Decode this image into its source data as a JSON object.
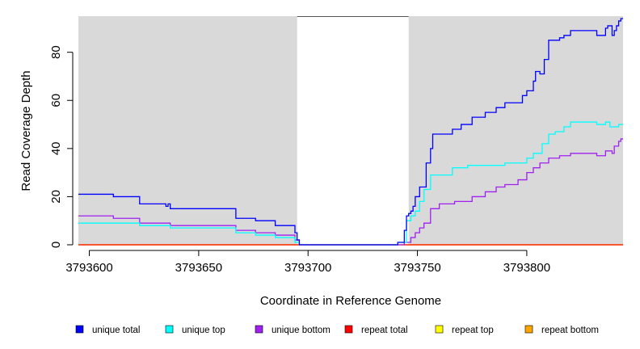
{
  "chart_data": {
    "type": "line",
    "xlabel": "Coordinate in Reference Genome",
    "ylabel": "Read Coverage Depth",
    "xlim": [
      3793595,
      3793844
    ],
    "ylim": [
      0,
      95
    ],
    "x_ticks": [
      3793600,
      3793650,
      3793700,
      3793750,
      3793800
    ],
    "x_tick_labels": [
      "3793600",
      "3793650",
      "3793700",
      "3793750",
      "3793800"
    ],
    "y_ticks": [
      0,
      20,
      40,
      60,
      80
    ],
    "y_tick_labels": [
      "0",
      "20",
      "40",
      "60",
      "80"
    ],
    "grid": false,
    "background_color": "#d9d9d9",
    "unshaded_region": [
      3793695,
      3793746
    ],
    "legend_placement": "bottom",
    "series": [
      {
        "name": "unique total",
        "color": "#0000ff",
        "points": [
          [
            3793595,
            21
          ],
          [
            3793611,
            20
          ],
          [
            3793623,
            17
          ],
          [
            3793635,
            16
          ],
          [
            3793636,
            17
          ],
          [
            3793637,
            15
          ],
          [
            3793667,
            11
          ],
          [
            3793676,
            10
          ],
          [
            3793685,
            8
          ],
          [
            3793694,
            5
          ],
          [
            3793695,
            2
          ],
          [
            3793696,
            0
          ],
          [
            3793741,
            1
          ],
          [
            3793744,
            6
          ],
          [
            3793745,
            12
          ],
          [
            3793746,
            13
          ],
          [
            3793747,
            14
          ],
          [
            3793748,
            16
          ],
          [
            3793749,
            20
          ],
          [
            3793751,
            24
          ],
          [
            3793754,
            34
          ],
          [
            3793756,
            40
          ],
          [
            3793757,
            46
          ],
          [
            3793766,
            48
          ],
          [
            3793770,
            50
          ],
          [
            3793775,
            53
          ],
          [
            3793781,
            55
          ],
          [
            3793786,
            57
          ],
          [
            3793790,
            59
          ],
          [
            3793798,
            62
          ],
          [
            3793800,
            64
          ],
          [
            3793803,
            68
          ],
          [
            3793804,
            72
          ],
          [
            3793806,
            71
          ],
          [
            3793808,
            77
          ],
          [
            3793810,
            85
          ],
          [
            3793815,
            86
          ],
          [
            3793817,
            87
          ],
          [
            3793820,
            89
          ],
          [
            3793832,
            87
          ],
          [
            3793836,
            90
          ],
          [
            3793837,
            91
          ],
          [
            3793839,
            87
          ],
          [
            3793840,
            89
          ],
          [
            3793841,
            91
          ],
          [
            3793842,
            93
          ],
          [
            3793843,
            94
          ]
        ]
      },
      {
        "name": "unique top",
        "color": "#00ffff",
        "points": [
          [
            3793595,
            9
          ],
          [
            3793623,
            8
          ],
          [
            3793637,
            7
          ],
          [
            3793667,
            5
          ],
          [
            3793676,
            4
          ],
          [
            3793685,
            3
          ],
          [
            3793694,
            1
          ],
          [
            3793696,
            0
          ],
          [
            3793741,
            1
          ],
          [
            3793745,
            10
          ],
          [
            3793747,
            12
          ],
          [
            3793749,
            14
          ],
          [
            3793751,
            18
          ],
          [
            3793753,
            23
          ],
          [
            3793756,
            29
          ],
          [
            3793766,
            32
          ],
          [
            3793773,
            33
          ],
          [
            3793790,
            34
          ],
          [
            3793800,
            36
          ],
          [
            3793803,
            38
          ],
          [
            3793807,
            42
          ],
          [
            3793810,
            46
          ],
          [
            3793813,
            47
          ],
          [
            3793817,
            49
          ],
          [
            3793820,
            51
          ],
          [
            3793832,
            50
          ],
          [
            3793836,
            51
          ],
          [
            3793838,
            49
          ],
          [
            3793842,
            50
          ]
        ]
      },
      {
        "name": "unique bottom",
        "color": "#a020f0",
        "points": [
          [
            3793595,
            12
          ],
          [
            3793611,
            11
          ],
          [
            3793623,
            9
          ],
          [
            3793637,
            8
          ],
          [
            3793667,
            6
          ],
          [
            3793676,
            5
          ],
          [
            3793685,
            4
          ],
          [
            3793694,
            2
          ],
          [
            3793696,
            0
          ],
          [
            3793744,
            1
          ],
          [
            3793747,
            3
          ],
          [
            3793749,
            5
          ],
          [
            3793751,
            7
          ],
          [
            3793753,
            9
          ],
          [
            3793756,
            15
          ],
          [
            3793760,
            17
          ],
          [
            3793767,
            18
          ],
          [
            3793775,
            20
          ],
          [
            3793781,
            22
          ],
          [
            3793786,
            24
          ],
          [
            3793790,
            25
          ],
          [
            3793796,
            27
          ],
          [
            3793800,
            30
          ],
          [
            3793803,
            32
          ],
          [
            3793806,
            34
          ],
          [
            3793810,
            36
          ],
          [
            3793815,
            37
          ],
          [
            3793820,
            38
          ],
          [
            3793832,
            37
          ],
          [
            3793836,
            39
          ],
          [
            3793839,
            38
          ],
          [
            3793840,
            41
          ],
          [
            3793842,
            43
          ],
          [
            3793843,
            44
          ]
        ]
      },
      {
        "name": "repeat total",
        "color": "#ff0000",
        "points": [
          [
            3793595,
            0
          ],
          [
            3793844,
            0
          ]
        ]
      },
      {
        "name": "repeat top",
        "color": "#ffff00",
        "points": [
          [
            3793595,
            0
          ],
          [
            3793844,
            0
          ]
        ]
      },
      {
        "name": "repeat bottom",
        "color": "#ffa500",
        "points": [
          [
            3793595,
            0
          ],
          [
            3793844,
            0
          ]
        ]
      }
    ]
  }
}
